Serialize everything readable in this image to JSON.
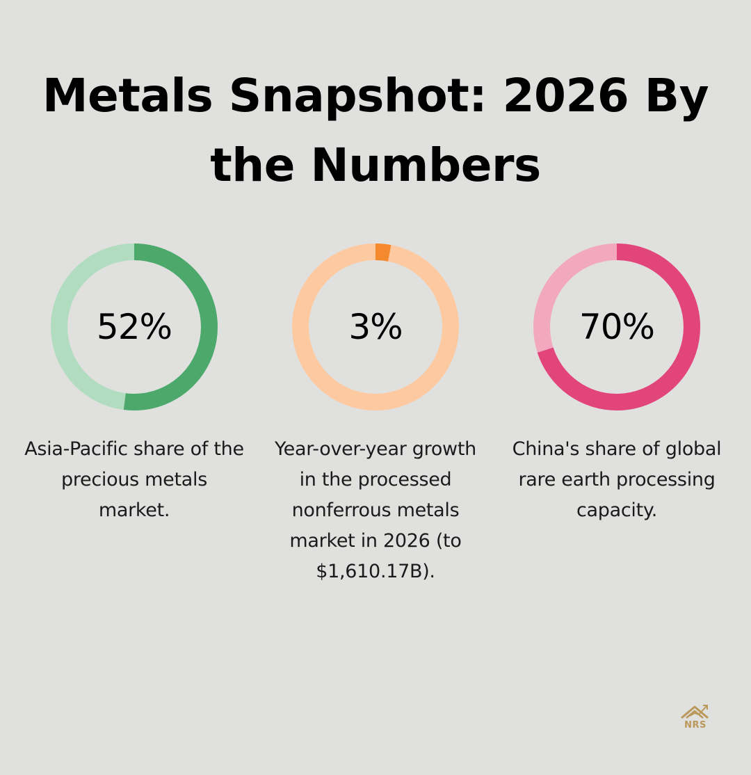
{
  "title": "Metals Snapshot: 2026 By the Numbers",
  "chart_data": [
    {
      "type": "pie",
      "value": 52,
      "label": "52%",
      "description": "Asia-Pacific share of the precious metals market.",
      "colors": {
        "fill": "#4da86b",
        "track": "#b2dcc0"
      }
    },
    {
      "type": "pie",
      "value": 3,
      "label": "3%",
      "description": "Year-over-year growth in the processed nonferrous metals market in 2026 (to $1,610.17B).",
      "colors": {
        "fill": "#f5892e",
        "track": "#fdc9a1"
      }
    },
    {
      "type": "pie",
      "value": 70,
      "label": "70%",
      "description": "China's share of global rare earth processing capacity.",
      "colors": {
        "fill": "#e2457a",
        "track": "#f2a9c0"
      }
    }
  ],
  "logo": {
    "text": "NRS",
    "icon": "house-chart-icon",
    "color": "#b9985a"
  }
}
